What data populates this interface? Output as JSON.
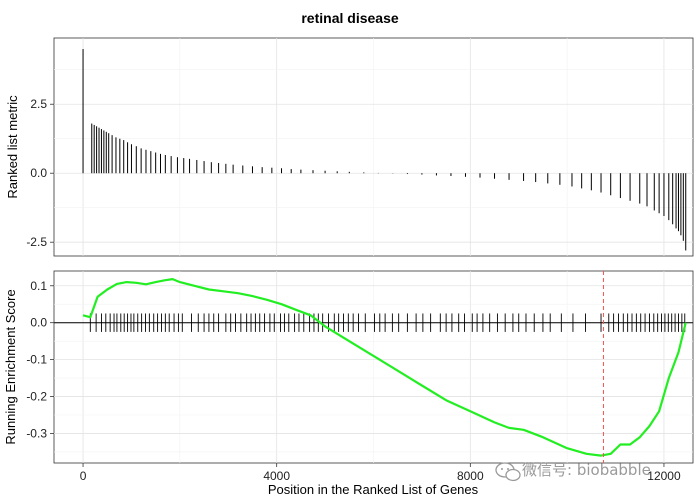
{
  "chart_data": {
    "type": "line",
    "title": "retinal disease",
    "xlabel": "Position in the Ranked List of Genes",
    "xlim": [
      -600,
      12600
    ],
    "x_ticks": [
      0,
      4000,
      8000,
      12000
    ],
    "grid": true,
    "panels": {
      "ranked": {
        "ylabel": "Ranked list metric",
        "ylim": [
          -3.0,
          4.9
        ],
        "y_ticks": [
          -2.5,
          0.0,
          2.5
        ],
        "y_tick_labels": [
          "-2.5",
          "0.0",
          "2.5"
        ],
        "bars": [
          [
            0,
            4.5
          ],
          [
            180,
            1.8
          ],
          [
            230,
            1.75
          ],
          [
            280,
            1.7
          ],
          [
            330,
            1.65
          ],
          [
            380,
            1.6
          ],
          [
            430,
            1.55
          ],
          [
            480,
            1.5
          ],
          [
            530,
            1.45
          ],
          [
            600,
            1.38
          ],
          [
            680,
            1.3
          ],
          [
            760,
            1.25
          ],
          [
            840,
            1.2
          ],
          [
            920,
            1.12
          ],
          [
            1000,
            1.05
          ],
          [
            1100,
            0.98
          ],
          [
            1200,
            0.9
          ],
          [
            1300,
            0.85
          ],
          [
            1400,
            0.8
          ],
          [
            1500,
            0.75
          ],
          [
            1600,
            0.7
          ],
          [
            1700,
            0.66
          ],
          [
            1820,
            0.62
          ],
          [
            1950,
            0.58
          ],
          [
            2080,
            0.55
          ],
          [
            2200,
            0.52
          ],
          [
            2350,
            0.48
          ],
          [
            2500,
            0.44
          ],
          [
            2650,
            0.4
          ],
          [
            2800,
            0.37
          ],
          [
            2950,
            0.34
          ],
          [
            3100,
            0.31
          ],
          [
            3300,
            0.28
          ],
          [
            3500,
            0.25
          ],
          [
            3700,
            0.22
          ],
          [
            3900,
            0.2
          ],
          [
            4100,
            0.18
          ],
          [
            4300,
            0.15
          ],
          [
            4500,
            0.13
          ],
          [
            4750,
            0.11
          ],
          [
            5000,
            0.09
          ],
          [
            5250,
            0.07
          ],
          [
            5500,
            0.05
          ],
          [
            5800,
            0.03
          ],
          [
            6100,
            0.01
          ],
          [
            6400,
            -0.01
          ],
          [
            6700,
            -0.03
          ],
          [
            7000,
            -0.05
          ],
          [
            7300,
            -0.08
          ],
          [
            7600,
            -0.1
          ],
          [
            7900,
            -0.13
          ],
          [
            8200,
            -0.16
          ],
          [
            8500,
            -0.2
          ],
          [
            8800,
            -0.24
          ],
          [
            9100,
            -0.28
          ],
          [
            9350,
            -0.32
          ],
          [
            9600,
            -0.37
          ],
          [
            9850,
            -0.42
          ],
          [
            10100,
            -0.48
          ],
          [
            10300,
            -0.55
          ],
          [
            10500,
            -0.62
          ],
          [
            10700,
            -0.7
          ],
          [
            10900,
            -0.8
          ],
          [
            11100,
            -0.9
          ],
          [
            11300,
            -1.0
          ],
          [
            11500,
            -1.1
          ],
          [
            11650,
            -1.2
          ],
          [
            11800,
            -1.35
          ],
          [
            11900,
            -1.45
          ],
          [
            12000,
            -1.55
          ],
          [
            12100,
            -1.7
          ],
          [
            12180,
            -1.85
          ],
          [
            12250,
            -2.0
          ],
          [
            12300,
            -2.1
          ],
          [
            12350,
            -2.25
          ],
          [
            12400,
            -2.45
          ],
          [
            12450,
            -2.8
          ]
        ]
      },
      "running": {
        "ylabel": "Running Enrichment Score",
        "ylim": [
          -0.38,
          0.14
        ],
        "y_ticks": [
          -0.3,
          -0.2,
          -0.1,
          0.0,
          0.1
        ],
        "y_tick_labels": [
          "-0.3",
          "-0.2",
          "-0.1",
          "0.0",
          "0.1"
        ],
        "es_curve": [
          [
            0,
            0.02
          ],
          [
            150,
            0.015
          ],
          [
            300,
            0.07
          ],
          [
            500,
            0.09
          ],
          [
            700,
            0.105
          ],
          [
            900,
            0.11
          ],
          [
            1100,
            0.108
          ],
          [
            1300,
            0.104
          ],
          [
            1500,
            0.11
          ],
          [
            1700,
            0.115
          ],
          [
            1850,
            0.118
          ],
          [
            2000,
            0.11
          ],
          [
            2300,
            0.1
          ],
          [
            2600,
            0.09
          ],
          [
            2900,
            0.085
          ],
          [
            3200,
            0.08
          ],
          [
            3500,
            0.072
          ],
          [
            3800,
            0.062
          ],
          [
            4100,
            0.05
          ],
          [
            4400,
            0.035
          ],
          [
            4700,
            0.02
          ],
          [
            5000,
            -0.01
          ],
          [
            5500,
            -0.05
          ],
          [
            6000,
            -0.09
          ],
          [
            6500,
            -0.13
          ],
          [
            7000,
            -0.17
          ],
          [
            7500,
            -0.21
          ],
          [
            8000,
            -0.24
          ],
          [
            8500,
            -0.27
          ],
          [
            8800,
            -0.285
          ],
          [
            9100,
            -0.29
          ],
          [
            9500,
            -0.31
          ],
          [
            10000,
            -0.34
          ],
          [
            10400,
            -0.355
          ],
          [
            10700,
            -0.36
          ],
          [
            10900,
            -0.355
          ],
          [
            11100,
            -0.33
          ],
          [
            11300,
            -0.33
          ],
          [
            11500,
            -0.31
          ],
          [
            11700,
            -0.28
          ],
          [
            11900,
            -0.24
          ],
          [
            12100,
            -0.15
          ],
          [
            12300,
            -0.08
          ],
          [
            12450,
            0.0
          ]
        ],
        "hits": [
          150,
          270,
          380,
          470,
          560,
          640,
          700,
          780,
          850,
          920,
          990,
          1050,
          1130,
          1210,
          1290,
          1370,
          1460,
          1540,
          1620,
          1700,
          1780,
          1880,
          1970,
          2050,
          2240,
          2380,
          2500,
          2600,
          2700,
          2800,
          2950,
          3050,
          3150,
          3260,
          3380,
          3470,
          3560,
          3650,
          3750,
          3860,
          3950,
          4080,
          4160,
          4250,
          4370,
          4460,
          4560,
          4680,
          4770,
          4860,
          4950,
          5070,
          5190,
          5280,
          5380,
          5480,
          5580,
          5690,
          5830,
          6020,
          6130,
          6240,
          6390,
          6520,
          6700,
          6880,
          7020,
          7180,
          7380,
          7500,
          7620,
          7760,
          7880,
          8040,
          8140,
          8260,
          8400,
          8560,
          8720,
          8880,
          9000,
          9150,
          9320,
          9500,
          9650,
          9880,
          10120,
          10380,
          10700,
          10860,
          10960,
          11060,
          11160,
          11250,
          11340,
          11430,
          11520,
          11610,
          11700,
          11790,
          11870,
          11950,
          12020,
          12090,
          12160,
          12230,
          12300,
          12370,
          12430
        ],
        "peak_marker_x": 10750
      }
    }
  },
  "watermark": {
    "text": "微信号: biobabble"
  }
}
